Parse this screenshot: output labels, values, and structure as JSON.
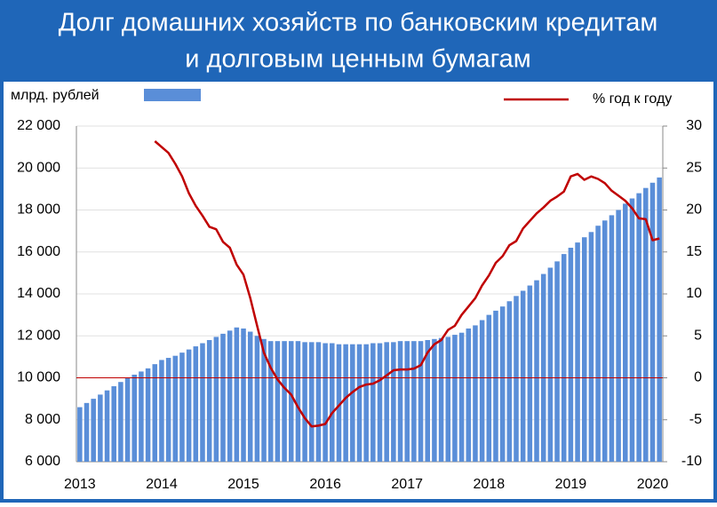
{
  "chart_data": {
    "type": "bar_line",
    "title": [
      "Долг домашних хозяйств по банковским кредитам",
      "и долговым ценным бумагам"
    ],
    "categories": [
      "2013",
      null,
      null,
      null,
      null,
      null,
      null,
      null,
      null,
      null,
      null,
      null,
      "2014",
      null,
      null,
      null,
      null,
      null,
      null,
      null,
      null,
      null,
      null,
      null,
      "2015",
      null,
      null,
      null,
      null,
      null,
      null,
      null,
      null,
      null,
      null,
      null,
      "2016",
      null,
      null,
      null,
      null,
      null,
      null,
      null,
      null,
      null,
      null,
      null,
      "2017",
      null,
      null,
      null,
      null,
      null,
      null,
      null,
      null,
      null,
      null,
      null,
      "2018",
      null,
      null,
      null,
      null,
      null,
      null,
      null,
      null,
      null,
      null,
      null,
      "2019",
      null,
      null,
      null,
      null,
      null,
      null,
      null,
      null,
      null,
      null,
      null,
      "2020",
      null
    ],
    "series": [
      {
        "name": "млрд. рублей",
        "color": "#5a8ed8",
        "kind": "bar",
        "values": [
          8600,
          8800,
          9000,
          9200,
          9400,
          9600,
          9800,
          10000,
          10150,
          10300,
          10450,
          10650,
          10850,
          10950,
          11050,
          11200,
          11350,
          11500,
          11650,
          11800,
          11950,
          12100,
          12250,
          12400,
          12350,
          12200,
          12000,
          11850,
          11750,
          11750,
          11750,
          11750,
          11750,
          11700,
          11700,
          11700,
          11650,
          11650,
          11600,
          11600,
          11600,
          11600,
          11600,
          11650,
          11650,
          11700,
          11700,
          11750,
          11750,
          11750,
          11750,
          11800,
          11850,
          11900,
          11950,
          12050,
          12150,
          12350,
          12500,
          12750,
          13000,
          13200,
          13400,
          13650,
          13900,
          14150,
          14400,
          14650,
          14950,
          15250,
          15550,
          15900,
          16200,
          16450,
          16700,
          16950,
          17250,
          17500,
          17750,
          18000,
          18300,
          18550,
          18800,
          19050,
          19300,
          19550
        ]
      },
      {
        "name": "%  год к году",
        "color": "#c00000",
        "kind": "line",
        "axis": "y2",
        "values": [
          null,
          null,
          null,
          null,
          null,
          null,
          null,
          null,
          null,
          null,
          null,
          28.2,
          27.5,
          26.8,
          25.5,
          24,
          22,
          20.5,
          19.3,
          18,
          17.7,
          16.2,
          15.5,
          13.5,
          12.3,
          9.5,
          6.2,
          3,
          1.2,
          -0.2,
          -1.2,
          -2,
          -3.5,
          -4.8,
          -5.8,
          -5.7,
          -5.5,
          -4.2,
          -3.3,
          -2.4,
          -1.7,
          -1.1,
          -0.8,
          -0.7,
          -0.3,
          0.3,
          0.9,
          1,
          1,
          1.1,
          1.5,
          3,
          4,
          4.5,
          5.7,
          6.2,
          7.5,
          8.5,
          9.5,
          11,
          12.2,
          13.7,
          14.5,
          15.8,
          16.3,
          17.8,
          18.7,
          19.6,
          20.3,
          21.1,
          21.6,
          22.2,
          24,
          24.3,
          23.6,
          24,
          23.7,
          23.2,
          22.3,
          21.7,
          21.1,
          20.2,
          19,
          18.9,
          16.4,
          16.6
        ]
      }
    ],
    "ylim": [
      6000,
      22000
    ],
    "yticks": [
      {
        "value": 6000,
        "label": "6 000"
      },
      {
        "value": 8000,
        "label": "8 000"
      },
      {
        "value": 10000,
        "label": "10 000"
      },
      {
        "value": 12000,
        "label": "12 000"
      },
      {
        "value": 14000,
        "label": "14 000"
      },
      {
        "value": 16000,
        "label": "16 000"
      },
      {
        "value": 18000,
        "label": "18 000"
      },
      {
        "value": 20000,
        "label": "20 000"
      },
      {
        "value": 22000,
        "label": "22 000"
      }
    ],
    "y2lim": [
      -10,
      30
    ],
    "y2ticks": [
      -10,
      -5,
      0,
      5,
      10,
      15,
      20,
      25,
      30
    ],
    "grid": true
  }
}
